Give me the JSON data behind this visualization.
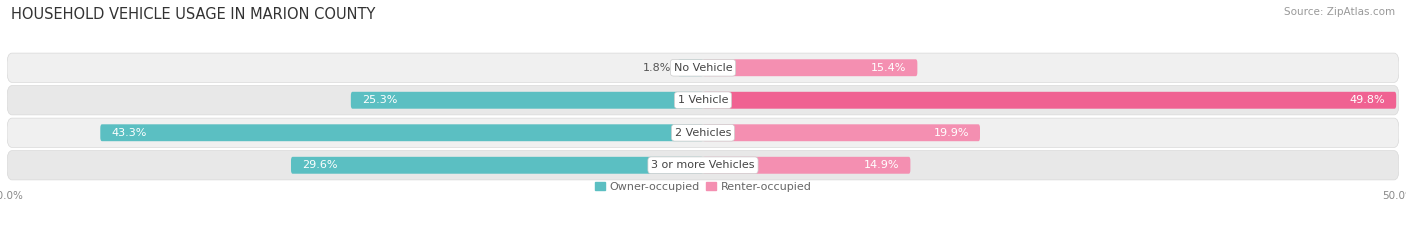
{
  "title": "HOUSEHOLD VEHICLE USAGE IN MARION COUNTY",
  "source": "Source: ZipAtlas.com",
  "categories": [
    "No Vehicle",
    "1 Vehicle",
    "2 Vehicles",
    "3 or more Vehicles"
  ],
  "owner_values": [
    1.8,
    25.3,
    43.3,
    29.6
  ],
  "renter_values": [
    15.4,
    49.8,
    19.9,
    14.9
  ],
  "owner_color": "#5bbfc2",
  "renter_color": "#f48fb1",
  "renter_color_bright": "#f06292",
  "background_color": "#ffffff",
  "xlim": 50.0,
  "legend_labels": [
    "Owner-occupied",
    "Renter-occupied"
  ],
  "title_fontsize": 10.5,
  "source_fontsize": 7.5,
  "label_fontsize": 8.0,
  "axis_label_fontsize": 7.5,
  "bar_height": 0.52,
  "row_bg_colors": [
    "#f0f0f0",
    "#e8e8e8",
    "#f0f0f0",
    "#e8e8e8"
  ],
  "row_border_color": "#d8d8d8"
}
